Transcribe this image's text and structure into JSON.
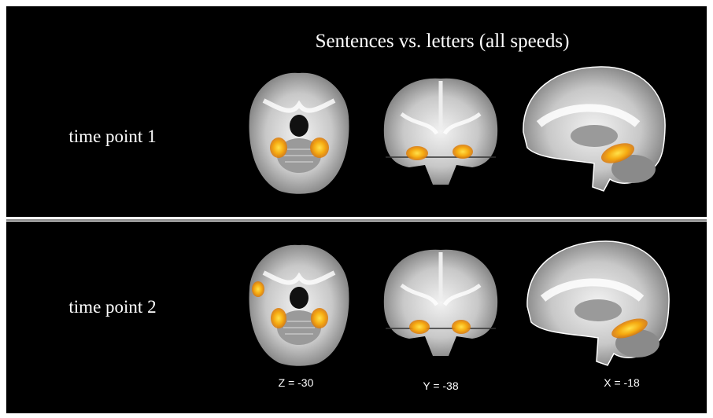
{
  "title": "Sentences vs. letters (all speeds)",
  "rows": [
    {
      "label": "time point 1"
    },
    {
      "label": "time point 2"
    }
  ],
  "slice_labels": [
    "Z = -30",
    "Y = -38",
    "X = -18"
  ]
}
